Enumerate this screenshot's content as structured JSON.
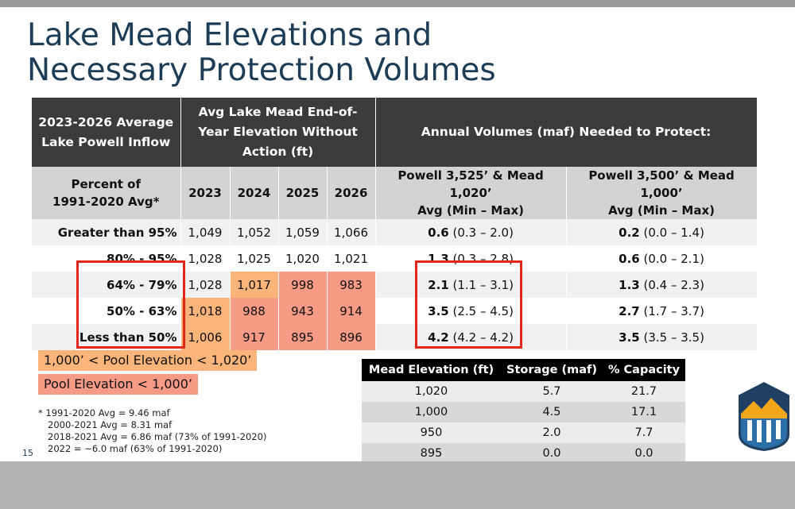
{
  "title_line1": "Lake Mead Elevations and",
  "title_line2": "Necessary Protection Volumes",
  "table": {
    "header_inflow": "2023-2026 Average Lake Powell Inflow",
    "header_elevation": "Avg Lake Mead End-of-Year Elevation Without Action (ft)",
    "header_volumes": "Annual Volumes (maf) Needed to Protect:",
    "sub_percent_line1": "Percent of",
    "sub_percent_line2": "1991-2020 Avg*",
    "years": [
      "2023",
      "2024",
      "2025",
      "2026"
    ],
    "sub_powell_a_line1": "Powell 3,525’ & Mead 1,020’",
    "sub_powell_a_line2": "Avg (Min – Max)",
    "sub_powell_b_line1": "Powell 3,500’ & Mead 1,000’",
    "sub_powell_b_line2": "Avg (Min – Max)",
    "rows": [
      {
        "label": "Greater than 95%",
        "e": [
          "1,049",
          "1,052",
          "1,059",
          "1,066"
        ],
        "a_avg": "0.6",
        "a_range": "(0.3 – 2.0)",
        "b_avg": "0.2",
        "b_range": "(0.0 – 1.4)"
      },
      {
        "label": "80% - 95%",
        "e": [
          "1,028",
          "1,025",
          "1,020",
          "1,021"
        ],
        "a_avg": "1.3",
        "a_range": "(0.3 – 2.8)",
        "b_avg": "0.6",
        "b_range": "(0.0 – 2.1)"
      },
      {
        "label": "64% - 79%",
        "e": [
          "1,028",
          "1,017",
          "998",
          "983"
        ],
        "a_avg": "2.1",
        "a_range": "(1.1 – 3.1)",
        "b_avg": "1.3",
        "b_range": "(0.4 – 2.3)"
      },
      {
        "label": "50% - 63%",
        "e": [
          "1,018",
          "988",
          "943",
          "914"
        ],
        "a_avg": "3.5",
        "a_range": "(2.5 – 4.5)",
        "b_avg": "2.7",
        "b_range": "(1.7 – 3.7)"
      },
      {
        "label": "Less than 50%",
        "e": [
          "1,006",
          "917",
          "895",
          "896"
        ],
        "a_avg": "4.2",
        "a_range": "(4.2 – 4.2)",
        "b_avg": "3.5",
        "b_range": "(3.5 – 3.5)"
      }
    ]
  },
  "legend_orange": "1,000’ < Pool Elevation < 1,020’",
  "legend_salmon": "Pool Elevation < 1,000’",
  "colors": {
    "orange": "#fbb47a",
    "salmon": "#f79b86",
    "title": "#1d3c56",
    "header": "#3b3b3b",
    "highlight_box": "#e3261a"
  },
  "notes": [
    "* 1991-2020 Avg = 9.46 maf",
    "2000-2021 Avg = 8.31 maf",
    "2018-2021 Avg = 6.86 maf (73% of 1991-2020)",
    "2022 = ~6.0 maf (63% of 1991-2020)"
  ],
  "page_number": "15",
  "mini_table": {
    "headers": [
      "Mead Elevation (ft)",
      "Storage (maf)",
      "% Capacity"
    ],
    "rows": [
      [
        "1,020",
        "5.7",
        "21.7"
      ],
      [
        "1,000",
        "4.5",
        "17.1"
      ],
      [
        "950",
        "2.0",
        "7.7"
      ],
      [
        "895",
        "0.0",
        "0.0"
      ]
    ]
  },
  "logo_icon": "bureau-of-reclamation-logo-icon"
}
